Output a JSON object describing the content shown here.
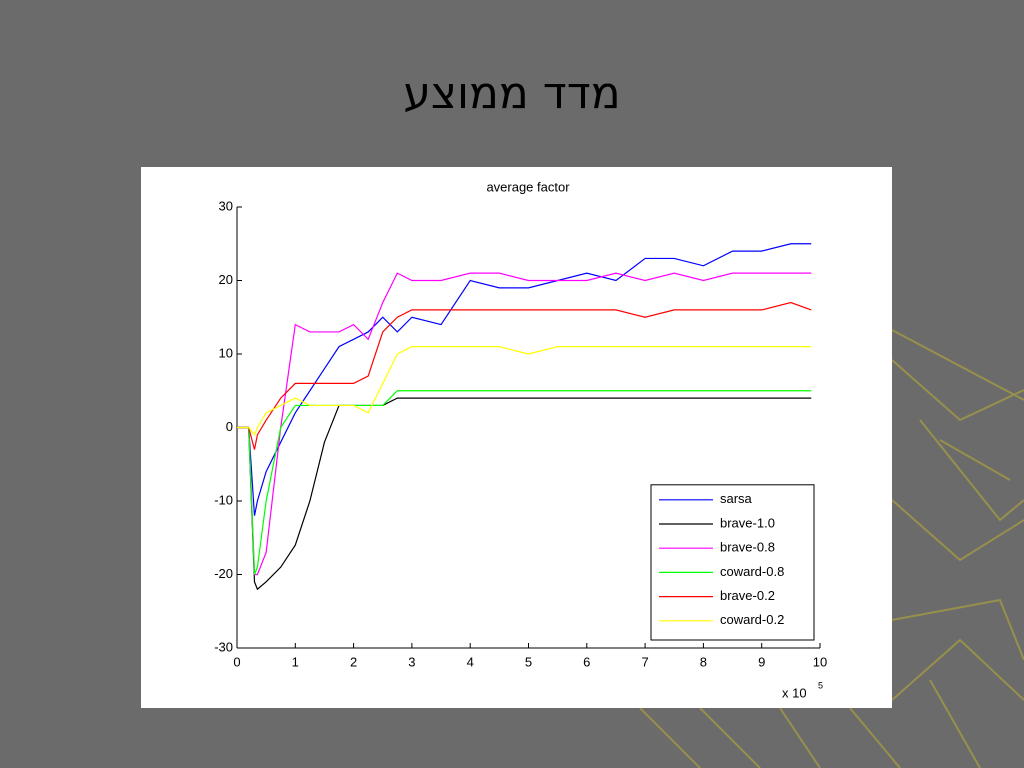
{
  "slide": {
    "title": "מדד ממוצע"
  },
  "chart_data": {
    "type": "line",
    "title": "average factor",
    "x": [
      0,
      0.2,
      0.3,
      0.35,
      0.5,
      0.75,
      1.0,
      1.25,
      1.5,
      1.75,
      2.0,
      2.25,
      2.5,
      2.75,
      3.0,
      3.5,
      4.0,
      4.5,
      5.0,
      5.5,
      6.0,
      6.5,
      7.0,
      7.5,
      8.0,
      8.5,
      9.0,
      9.5,
      9.85
    ],
    "series": [
      {
        "name": "sarsa",
        "color": "#0000ff",
        "values": [
          0,
          0,
          -12,
          -10,
          -6,
          -2,
          2,
          5,
          8,
          11,
          12,
          13,
          15,
          13,
          15,
          14,
          20,
          19,
          19,
          20,
          21,
          20,
          23,
          23,
          22,
          24,
          24,
          25,
          25
        ]
      },
      {
        "name": "brave-1.0",
        "color": "#000000",
        "values": [
          0,
          0,
          -21,
          -22,
          -21,
          -19,
          -16,
          -10,
          -2,
          3,
          3,
          3,
          3,
          4,
          4,
          4,
          4,
          4,
          4,
          4,
          4,
          4,
          4,
          4,
          4,
          4,
          4,
          4,
          4
        ]
      },
      {
        "name": "brave-0.8",
        "color": "#ff00ff",
        "values": [
          0,
          0,
          -20,
          -20,
          -17,
          0,
          14,
          13,
          13,
          13,
          14,
          12,
          17,
          21,
          20,
          20,
          21,
          21,
          20,
          20,
          20,
          21,
          20,
          21,
          20,
          21,
          21,
          21,
          21
        ]
      },
      {
        "name": "coward-0.8",
        "color": "#00ff00",
        "values": [
          0,
          0,
          -20,
          -19,
          -10,
          0,
          3,
          3,
          3,
          3,
          3,
          3,
          3,
          5,
          5,
          5,
          5,
          5,
          5,
          5,
          5,
          5,
          5,
          5,
          5,
          5,
          5,
          5,
          5
        ]
      },
      {
        "name": "brave-0.2",
        "color": "#ff0000",
        "values": [
          0,
          0,
          -3,
          -1,
          1,
          4,
          6,
          6,
          6,
          6,
          6,
          7,
          13,
          15,
          16,
          16,
          16,
          16,
          16,
          16,
          16,
          16,
          15,
          16,
          16,
          16,
          16,
          17,
          16
        ]
      },
      {
        "name": "coward-0.2",
        "color": "#ffff00",
        "values": [
          0,
          0,
          -1,
          0,
          2,
          3,
          4,
          3,
          3,
          3,
          3,
          2,
          6,
          10,
          11,
          11,
          11,
          11,
          10,
          11,
          11,
          11,
          11,
          11,
          11,
          11,
          11,
          11,
          11
        ]
      }
    ],
    "xlim": [
      0,
      10
    ],
    "xticks": [
      0,
      1,
      2,
      3,
      4,
      5,
      6,
      7,
      8,
      9,
      10
    ],
    "ylim": [
      -30,
      30
    ],
    "yticks": [
      -30,
      -20,
      -10,
      0,
      10,
      20,
      30
    ],
    "x_scale_label": "x 10",
    "x_scale_exponent": "5",
    "legend": "lower right"
  }
}
